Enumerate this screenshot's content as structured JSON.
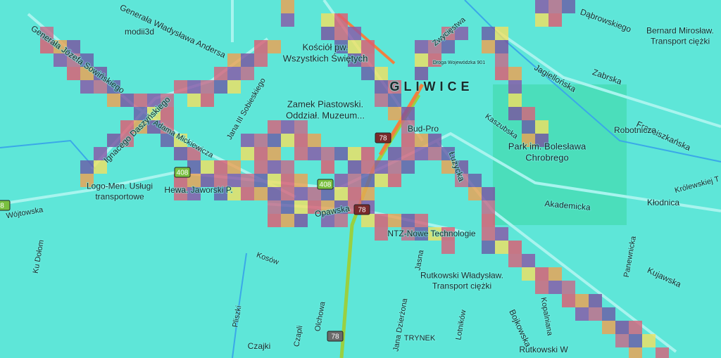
{
  "labels": [
    {
      "lines": [
        "Generała Józefa Sowińskiego"
      ]
    },
    {
      "lines": [
        "Generała Władysława Andersa"
      ]
    },
    {
      "lines": [
        "modii3d"
      ]
    },
    {
      "lines": [
        "Kościół pw.",
        "Wszystkich Świętych"
      ]
    },
    {
      "lines": [
        "GLIWICE"
      ]
    },
    {
      "lines": [
        "Zamek Piastowski.",
        "Oddział. Muzeum..."
      ]
    },
    {
      "lines": [
        "Bud-Pro"
      ]
    },
    {
      "lines": [
        "Jana III Sobieskiego"
      ]
    },
    {
      "lines": [
        "Ignacego Daszyńskiego"
      ]
    },
    {
      "lines": [
        "Adama Mickiewicza"
      ]
    },
    {
      "lines": [
        "Zwycięstwa"
      ]
    },
    {
      "lines": [
        "Dąbrowskiego"
      ]
    },
    {
      "lines": [
        "Bernard Mirosław.",
        "Transport ciężki"
      ]
    },
    {
      "lines": [
        "Jagiellońska"
      ]
    },
    {
      "lines": [
        "Zabrska"
      ]
    },
    {
      "lines": [
        "Kaszubska"
      ]
    },
    {
      "lines": [
        "Franciszkańska"
      ]
    },
    {
      "lines": [
        "Robotnicza"
      ]
    },
    {
      "lines": [
        "Park im. Bolesława",
        "Chrobrego"
      ]
    },
    {
      "lines": [
        "Łużycka"
      ]
    },
    {
      "lines": [
        "Królewskiej T"
      ]
    },
    {
      "lines": [
        "Kłodnica"
      ]
    },
    {
      "lines": [
        "Akademicka"
      ]
    },
    {
      "lines": [
        "Logo-Men. Usługi",
        "transportowe"
      ]
    },
    {
      "lines": [
        "Hewa. Jaworski P."
      ]
    },
    {
      "lines": [
        "Wójtowska"
      ]
    },
    {
      "lines": [
        "Opawska"
      ]
    },
    {
      "lines": [
        "NTZ-Nowe Technologie"
      ]
    },
    {
      "lines": [
        "Kosów"
      ]
    },
    {
      "lines": [
        "Ku Dołom"
      ]
    },
    {
      "lines": [
        "Jasna"
      ]
    },
    {
      "lines": [
        "Rutkowski Władysław.",
        "Transport ciężki"
      ]
    },
    {
      "lines": [
        "Panewnicka"
      ]
    },
    {
      "lines": [
        "Kujawska"
      ]
    },
    {
      "lines": [
        "Bojkowska"
      ]
    },
    {
      "lines": [
        "Kopalniana"
      ]
    },
    {
      "lines": [
        "Lotników"
      ]
    },
    {
      "lines": [
        "TRYNEK"
      ]
    },
    {
      "lines": [
        "Czajki"
      ]
    },
    {
      "lines": [
        "Czapli"
      ]
    },
    {
      "lines": [
        "Olchowa"
      ]
    },
    {
      "lines": [
        "Pliszki"
      ]
    },
    {
      "lines": [
        "Jana Dzierżona"
      ]
    },
    {
      "lines": [
        "Rutkowski W"
      ]
    },
    {
      "lines": [
        "Droga Wojewódzka 901"
      ]
    }
  ],
  "shields": [
    "408",
    "408",
    "78",
    "78",
    "78",
    "8"
  ]
}
